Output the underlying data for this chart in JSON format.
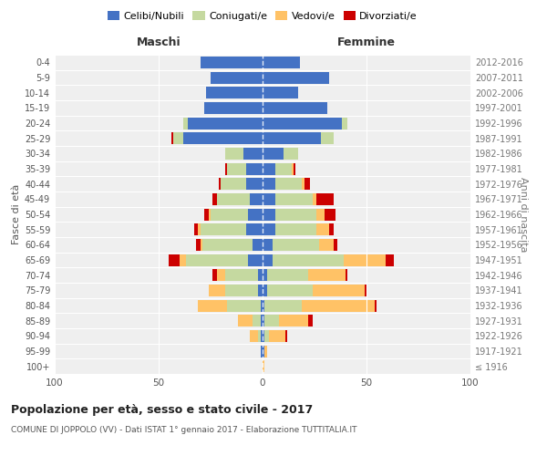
{
  "age_groups": [
    "100+",
    "95-99",
    "90-94",
    "85-89",
    "80-84",
    "75-79",
    "70-74",
    "65-69",
    "60-64",
    "55-59",
    "50-54",
    "45-49",
    "40-44",
    "35-39",
    "30-34",
    "25-29",
    "20-24",
    "15-19",
    "10-14",
    "5-9",
    "0-4"
  ],
  "birth_years": [
    "≤ 1916",
    "1917-1921",
    "1922-1926",
    "1927-1931",
    "1932-1936",
    "1937-1941",
    "1942-1946",
    "1947-1951",
    "1952-1956",
    "1957-1961",
    "1962-1966",
    "1967-1971",
    "1972-1976",
    "1977-1981",
    "1982-1986",
    "1987-1991",
    "1992-1996",
    "1997-2001",
    "2002-2006",
    "2007-2011",
    "2012-2016"
  ],
  "colors": {
    "celibi": "#4472c4",
    "coniugati": "#c5d9a0",
    "vedovi": "#ffc266",
    "divorziati": "#cc0000"
  },
  "maschi": {
    "celibi": [
      0,
      1,
      1,
      1,
      1,
      2,
      2,
      7,
      5,
      8,
      7,
      6,
      8,
      8,
      9,
      38,
      36,
      28,
      27,
      25,
      30
    ],
    "coniugati": [
      0,
      0,
      1,
      4,
      16,
      16,
      16,
      30,
      24,
      22,
      18,
      16,
      12,
      9,
      9,
      5,
      2,
      0,
      0,
      0,
      0
    ],
    "vedovi": [
      0,
      0,
      4,
      7,
      14,
      8,
      4,
      3,
      1,
      1,
      1,
      0,
      0,
      0,
      0,
      0,
      0,
      0,
      0,
      0,
      0
    ],
    "divorziati": [
      0,
      0,
      0,
      0,
      0,
      0,
      2,
      5,
      2,
      2,
      2,
      2,
      1,
      1,
      0,
      1,
      0,
      0,
      0,
      0,
      0
    ]
  },
  "femmine": {
    "celibi": [
      0,
      1,
      1,
      1,
      1,
      2,
      2,
      5,
      5,
      6,
      6,
      6,
      6,
      6,
      10,
      28,
      38,
      31,
      17,
      32,
      18
    ],
    "coniugati": [
      0,
      0,
      2,
      7,
      18,
      22,
      20,
      34,
      22,
      20,
      20,
      18,
      13,
      8,
      7,
      6,
      3,
      0,
      0,
      0,
      0
    ],
    "vedovi": [
      1,
      1,
      8,
      14,
      35,
      25,
      18,
      20,
      7,
      6,
      4,
      2,
      1,
      1,
      0,
      0,
      0,
      0,
      0,
      0,
      0
    ],
    "divorziati": [
      0,
      0,
      1,
      2,
      1,
      1,
      1,
      4,
      2,
      2,
      5,
      8,
      3,
      1,
      0,
      0,
      0,
      0,
      0,
      0,
      0
    ]
  },
  "xlim": 100,
  "title": "Popolazione per età, sesso e stato civile - 2017",
  "subtitle": "COMUNE DI JOPPOLO (VV) - Dati ISTAT 1° gennaio 2017 - Elaborazione TUTTITALIA.IT",
  "ylabel_left": "Fasce di età",
  "ylabel_right": "Anni di nascita",
  "maschi_label": "Maschi",
  "femmine_label": "Femmine",
  "legend_labels": [
    "Celibi/Nubili",
    "Coniugati/e",
    "Vedovi/e",
    "Divorziati/e"
  ]
}
